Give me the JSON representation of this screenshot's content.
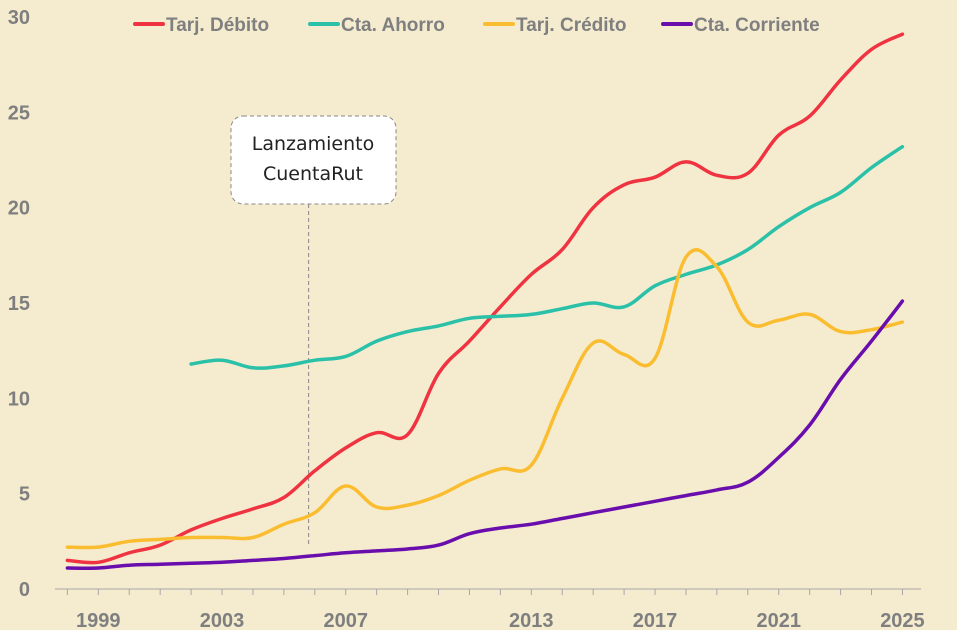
{
  "chart_data": {
    "type": "line",
    "title": "",
    "xlabel": "",
    "ylabel": "",
    "ylim": [
      0,
      30
    ],
    "yticks": [
      0,
      5,
      10,
      15,
      20,
      25,
      30
    ],
    "xlim": [
      1997.6,
      2025.6
    ],
    "xticks": [
      "1999",
      "2003",
      "2007",
      "2013",
      "2017",
      "2021",
      "2025"
    ],
    "legend_position": "top",
    "grid": false,
    "series": [
      {
        "name": "Tarj. Débito",
        "color": "#ef3340",
        "points": [
          [
            1998,
            1.5
          ],
          [
            1999,
            1.4
          ],
          [
            2000,
            1.9
          ],
          [
            2001,
            2.3
          ],
          [
            2002,
            3.1
          ],
          [
            2003,
            3.7
          ],
          [
            2004,
            4.2
          ],
          [
            2005,
            4.8
          ],
          [
            2006,
            6.2
          ],
          [
            2007,
            7.4
          ],
          [
            2008,
            8.2
          ],
          [
            2009,
            8.1
          ],
          [
            2010,
            11.3
          ],
          [
            2011,
            13.0
          ],
          [
            2012,
            14.8
          ],
          [
            2013,
            16.5
          ],
          [
            2014,
            17.8
          ],
          [
            2015,
            20.0
          ],
          [
            2016,
            21.2
          ],
          [
            2017,
            21.6
          ],
          [
            2018,
            22.4
          ],
          [
            2019,
            21.7
          ],
          [
            2020,
            21.8
          ],
          [
            2021,
            23.8
          ],
          [
            2022,
            24.8
          ],
          [
            2023,
            26.7
          ],
          [
            2024,
            28.3
          ],
          [
            2025,
            29.1
          ]
        ]
      },
      {
        "name": "Cta. Ahorro",
        "color": "#2bc0a8",
        "points": [
          [
            2002,
            11.8
          ],
          [
            2003,
            12.0
          ],
          [
            2004,
            11.6
          ],
          [
            2005,
            11.7
          ],
          [
            2006,
            12.0
          ],
          [
            2007,
            12.2
          ],
          [
            2008,
            13.0
          ],
          [
            2009,
            13.5
          ],
          [
            2010,
            13.8
          ],
          [
            2011,
            14.2
          ],
          [
            2012,
            14.3
          ],
          [
            2013,
            14.4
          ],
          [
            2014,
            14.7
          ],
          [
            2015,
            15.0
          ],
          [
            2016,
            14.8
          ],
          [
            2017,
            15.9
          ],
          [
            2018,
            16.5
          ],
          [
            2019,
            17.0
          ],
          [
            2020,
            17.8
          ],
          [
            2021,
            19.0
          ],
          [
            2022,
            20.0
          ],
          [
            2023,
            20.8
          ],
          [
            2024,
            22.1
          ],
          [
            2025,
            23.2
          ]
        ]
      },
      {
        "name": "Tarj. Crédito",
        "color": "#fbbd30",
        "points": [
          [
            1998,
            2.2
          ],
          [
            1999,
            2.2
          ],
          [
            2000,
            2.5
          ],
          [
            2001,
            2.6
          ],
          [
            2002,
            2.7
          ],
          [
            2003,
            2.7
          ],
          [
            2004,
            2.7
          ],
          [
            2005,
            3.4
          ],
          [
            2006,
            4.0
          ],
          [
            2007,
            5.4
          ],
          [
            2008,
            4.3
          ],
          [
            2009,
            4.4
          ],
          [
            2010,
            4.9
          ],
          [
            2011,
            5.7
          ],
          [
            2012,
            6.3
          ],
          [
            2013,
            6.5
          ],
          [
            2014,
            10.0
          ],
          [
            2015,
            12.9
          ],
          [
            2016,
            12.3
          ],
          [
            2017,
            12.1
          ],
          [
            2018,
            17.4
          ],
          [
            2019,
            16.9
          ],
          [
            2020,
            14.0
          ],
          [
            2021,
            14.1
          ],
          [
            2022,
            14.4
          ],
          [
            2023,
            13.5
          ],
          [
            2024,
            13.6
          ],
          [
            2025,
            14.0
          ]
        ]
      },
      {
        "name": "Cta. Corriente",
        "color": "#6a0dad",
        "points": [
          [
            1998,
            1.1
          ],
          [
            1999,
            1.1
          ],
          [
            2000,
            1.25
          ],
          [
            2001,
            1.3
          ],
          [
            2002,
            1.35
          ],
          [
            2003,
            1.4
          ],
          [
            2004,
            1.5
          ],
          [
            2005,
            1.6
          ],
          [
            2006,
            1.75
          ],
          [
            2007,
            1.9
          ],
          [
            2008,
            2.0
          ],
          [
            2009,
            2.1
          ],
          [
            2010,
            2.3
          ],
          [
            2011,
            2.9
          ],
          [
            2012,
            3.2
          ],
          [
            2013,
            3.4
          ],
          [
            2014,
            3.7
          ],
          [
            2015,
            4.0
          ],
          [
            2016,
            4.3
          ],
          [
            2017,
            4.6
          ],
          [
            2018,
            4.9
          ],
          [
            2019,
            5.2
          ],
          [
            2020,
            5.6
          ],
          [
            2021,
            6.9
          ],
          [
            2022,
            8.6
          ],
          [
            2023,
            11.0
          ],
          [
            2024,
            13.0
          ],
          [
            2025,
            15.1
          ]
        ]
      }
    ],
    "annotations": [
      {
        "lines": [
          "Lanzamiento",
          "CuentaRut"
        ],
        "x": 2005.8
      }
    ]
  }
}
